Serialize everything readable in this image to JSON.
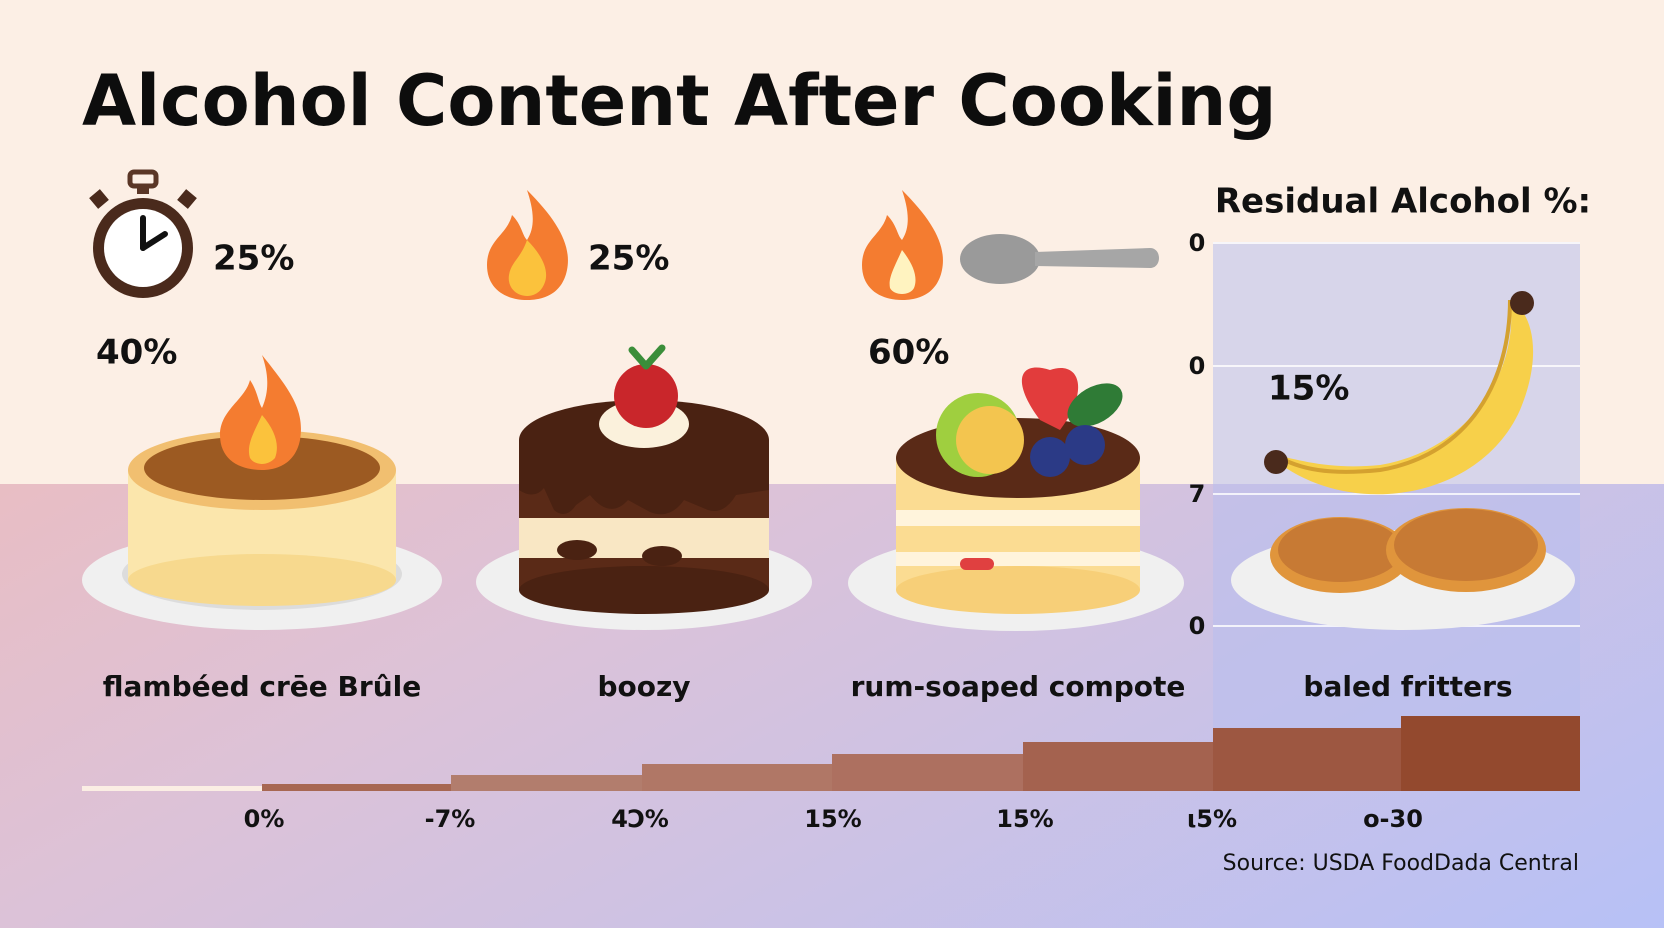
{
  "header": {
    "title": "Alcohol Content After Cooking"
  },
  "icons": [
    {
      "label": "25%"
    },
    {
      "label": "25%"
    }
  ],
  "callouts": [
    "40%",
    "60%"
  ],
  "desserts": [
    {
      "name": "flambéed crēe Brûle"
    },
    {
      "name": "boozy"
    },
    {
      "name": "rum-soaped compote"
    },
    {
      "name": "baled fritters"
    }
  ],
  "panel": {
    "title": "Residual Alcohol %:",
    "ticks": [
      "0",
      "0",
      "7",
      "0"
    ],
    "value_label": "15%"
  },
  "steps": [
    "0%",
    "-7%",
    "4Ͻ%",
    "15%",
    "15%",
    "ι5%",
    "o-30"
  ],
  "source": "Source: USDA FoodDada Central"
}
